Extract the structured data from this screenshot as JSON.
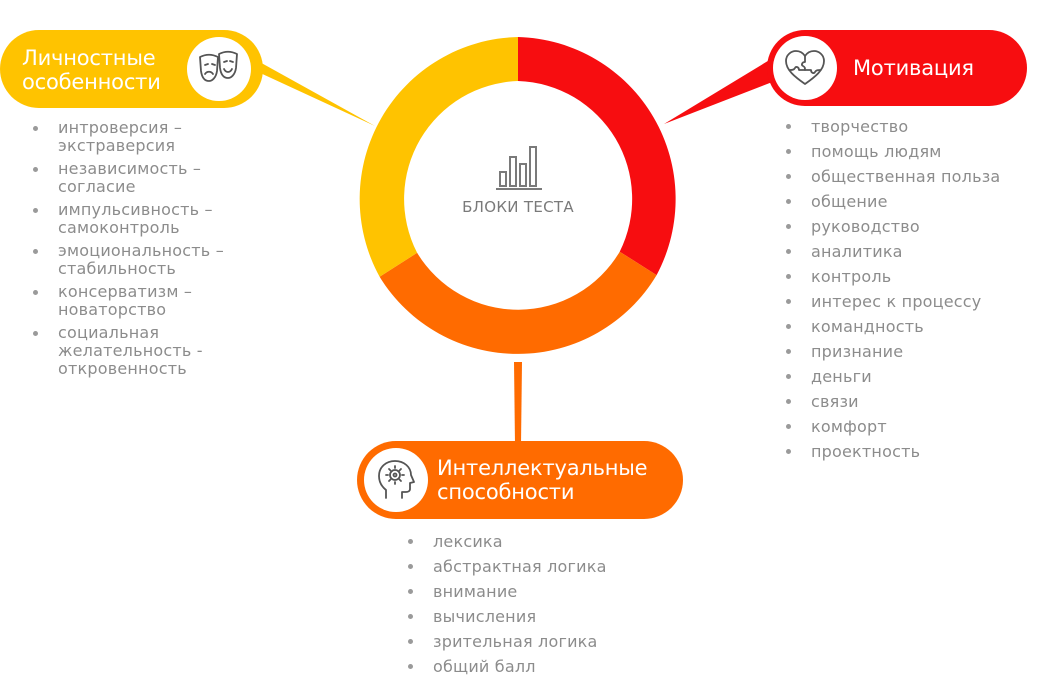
{
  "center": {
    "label": "БЛОКИ ТЕСТА",
    "icon": "bar-chart-icon"
  },
  "colors": {
    "personal": "#FFC300",
    "motivation": "#F70D10",
    "intellect": "#FF6B00",
    "list_text": "#8c8c8c"
  },
  "blocks": {
    "personal": {
      "title": "Личностные особенности",
      "icon": "theater-masks-icon",
      "items": [
        "интроверсия – экстраверсия",
        "независимость – согласие",
        "импульсивность – самоконтроль",
        "эмоциональность – стабильность",
        "консерватизм – новаторство",
        "социальная желательность - откровенность"
      ]
    },
    "motivation": {
      "title": "Мотивация",
      "icon": "heart-puzzle-icon",
      "items": [
        "творчество",
        "помощь людям",
        "общественная польза",
        "общение",
        "руководство",
        "аналитика",
        "контроль",
        "интерес к процессу",
        "командность",
        "признание",
        "деньги",
        "связи",
        "комфорт",
        "проектность"
      ]
    },
    "intellect": {
      "title": "Интеллектуальные способности",
      "icon": "head-gear-icon",
      "items": [
        "лексика",
        "абстрактная логика",
        "внимание",
        "вычисления",
        "зрительная логика",
        "общий балл"
      ]
    }
  }
}
